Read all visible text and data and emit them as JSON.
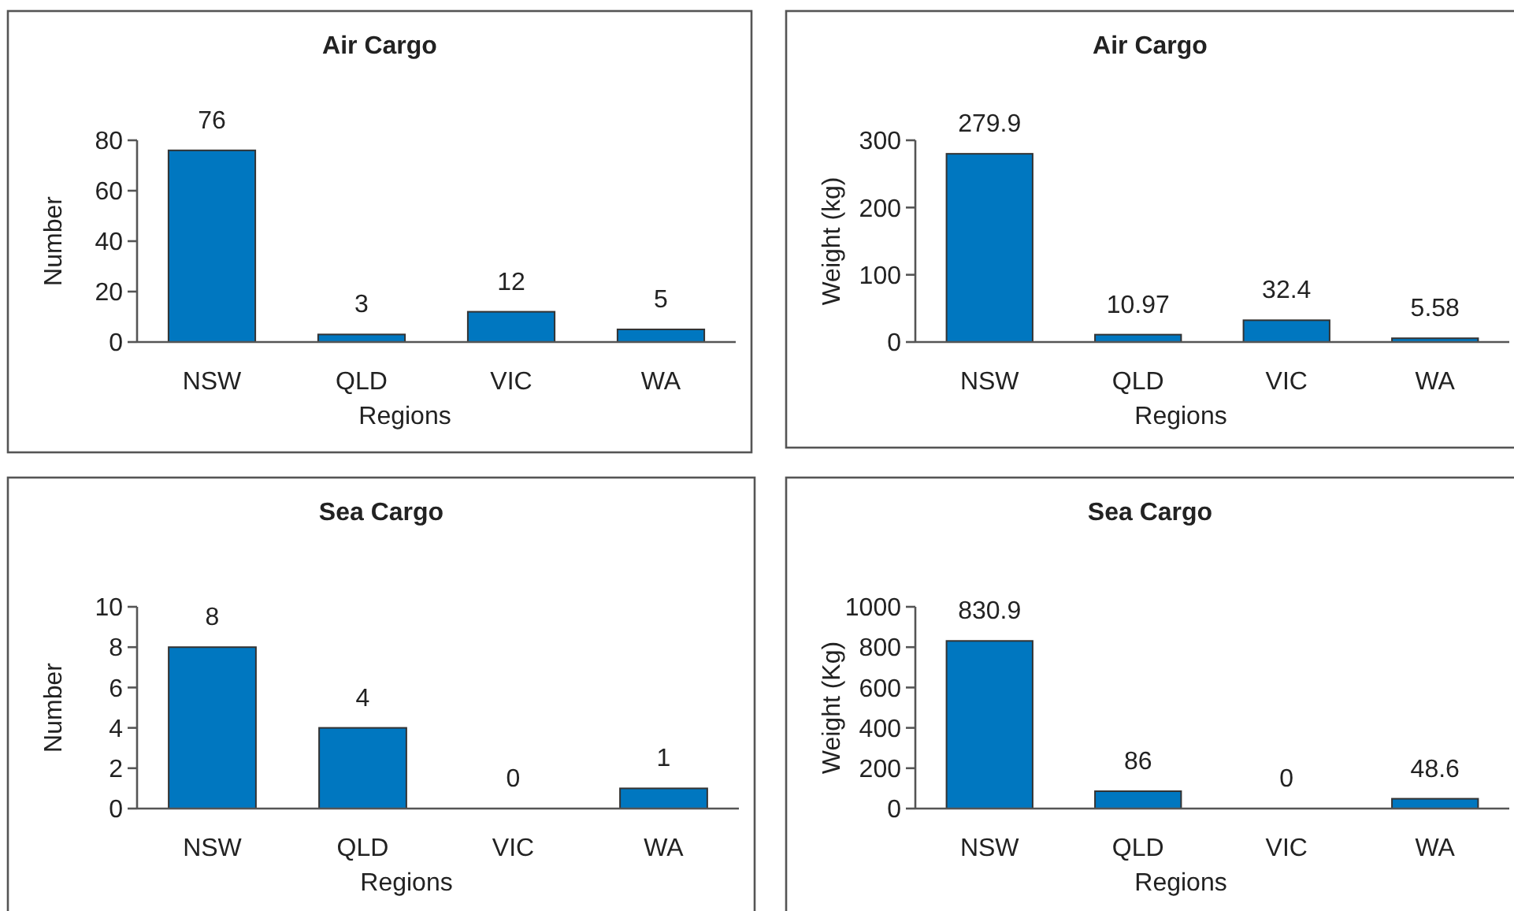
{
  "chart_data": [
    {
      "type": "bar",
      "title": "Air Cargo",
      "xlabel": "Regions",
      "ylabel": "Number",
      "categories": [
        "NSW",
        "QLD",
        "VIC",
        "WA"
      ],
      "values": [
        76,
        3,
        12,
        5
      ],
      "color": "#0077c0",
      "ylim": [
        0,
        80
      ],
      "yticks": [
        0,
        20,
        40,
        60,
        80
      ],
      "data_labels": true,
      "grid": false
    },
    {
      "type": "bar",
      "title": "Air Cargo",
      "xlabel": "Regions",
      "ylabel": "Weight (kg)",
      "categories": [
        "NSW",
        "QLD",
        "VIC",
        "WA"
      ],
      "values": [
        279.9,
        10.97,
        32.4,
        5.58
      ],
      "color": "#0077c0",
      "ylim": [
        0,
        300
      ],
      "yticks": [
        0,
        100,
        200,
        300
      ],
      "data_labels": true,
      "grid": false
    },
    {
      "type": "bar",
      "title": "Sea Cargo",
      "xlabel": "Regions",
      "ylabel": "Number",
      "categories": [
        "NSW",
        "QLD",
        "VIC",
        "WA"
      ],
      "values": [
        8,
        4,
        0,
        1
      ],
      "color": "#0077c0",
      "ylim": [
        0,
        10
      ],
      "yticks": [
        0,
        2,
        4,
        6,
        8,
        10
      ],
      "data_labels": true,
      "grid": false
    },
    {
      "type": "bar",
      "title": "Sea Cargo",
      "xlabel": "Regions",
      "ylabel": "Weight (Kg)",
      "categories": [
        "NSW",
        "QLD",
        "VIC",
        "WA"
      ],
      "values": [
        830.9,
        86,
        0,
        48.6
      ],
      "color": "#0077c0",
      "ylim": [
        0,
        1000
      ],
      "yticks": [
        0,
        200,
        400,
        600,
        800,
        1000
      ],
      "data_labels": true,
      "grid": false
    }
  ]
}
